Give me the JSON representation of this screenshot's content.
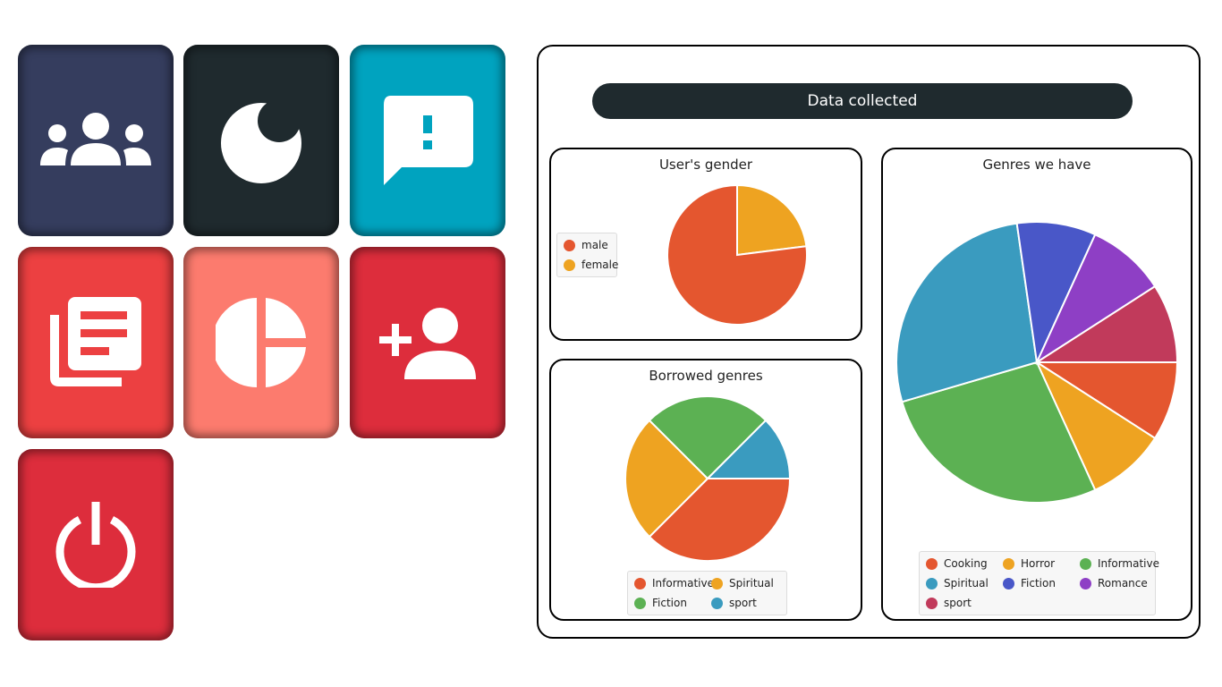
{
  "tiles": [
    {
      "name": "users-tile",
      "icon": "users-icon",
      "color": "#353d5e"
    },
    {
      "name": "dark-mode-tile",
      "icon": "moon-icon",
      "color": "#1f2a2e"
    },
    {
      "name": "feedback-tile",
      "icon": "feedback-icon",
      "color": "#00a3bf"
    },
    {
      "name": "books-tile",
      "icon": "library-icon",
      "color": "#ec4041"
    },
    {
      "name": "statistics-tile",
      "icon": "pie-chart-icon",
      "color": "#fc7b6e"
    },
    {
      "name": "add-user-tile",
      "icon": "add-user-icon",
      "color": "#dd2d3c"
    },
    {
      "name": "logout-tile",
      "icon": "power-icon",
      "color": "#dd2d3c"
    }
  ],
  "panel": {
    "title": "Data collected"
  },
  "chart_data": [
    {
      "type": "pie",
      "title": "User's gender",
      "categories": [
        "male",
        "female"
      ],
      "values": [
        77,
        23
      ],
      "colors": [
        "#e4562f",
        "#eea321"
      ],
      "legend_position": "left"
    },
    {
      "type": "pie",
      "title": "Borrowed genres",
      "categories": [
        "Informative",
        "Spiritual",
        "Fiction",
        "sport"
      ],
      "values": [
        37.5,
        25,
        25,
        12.5
      ],
      "colors": [
        "#e4562f",
        "#eea321",
        "#5cb153",
        "#3a9bbf"
      ],
      "legend_position": "bottom"
    },
    {
      "type": "pie",
      "title": "Genres we have",
      "categories": [
        "Cooking",
        "Horror",
        "Informative",
        "Spiritual",
        "Fiction",
        "Romance",
        "sport"
      ],
      "values": [
        9.1,
        9.1,
        27.3,
        27.3,
        9.1,
        9.1,
        9.1
      ],
      "colors": [
        "#e4562f",
        "#eea321",
        "#5cb153",
        "#3a9bbf",
        "#4957c8",
        "#8e3fc5",
        "#c13a5b"
      ],
      "legend_position": "bottom"
    }
  ]
}
